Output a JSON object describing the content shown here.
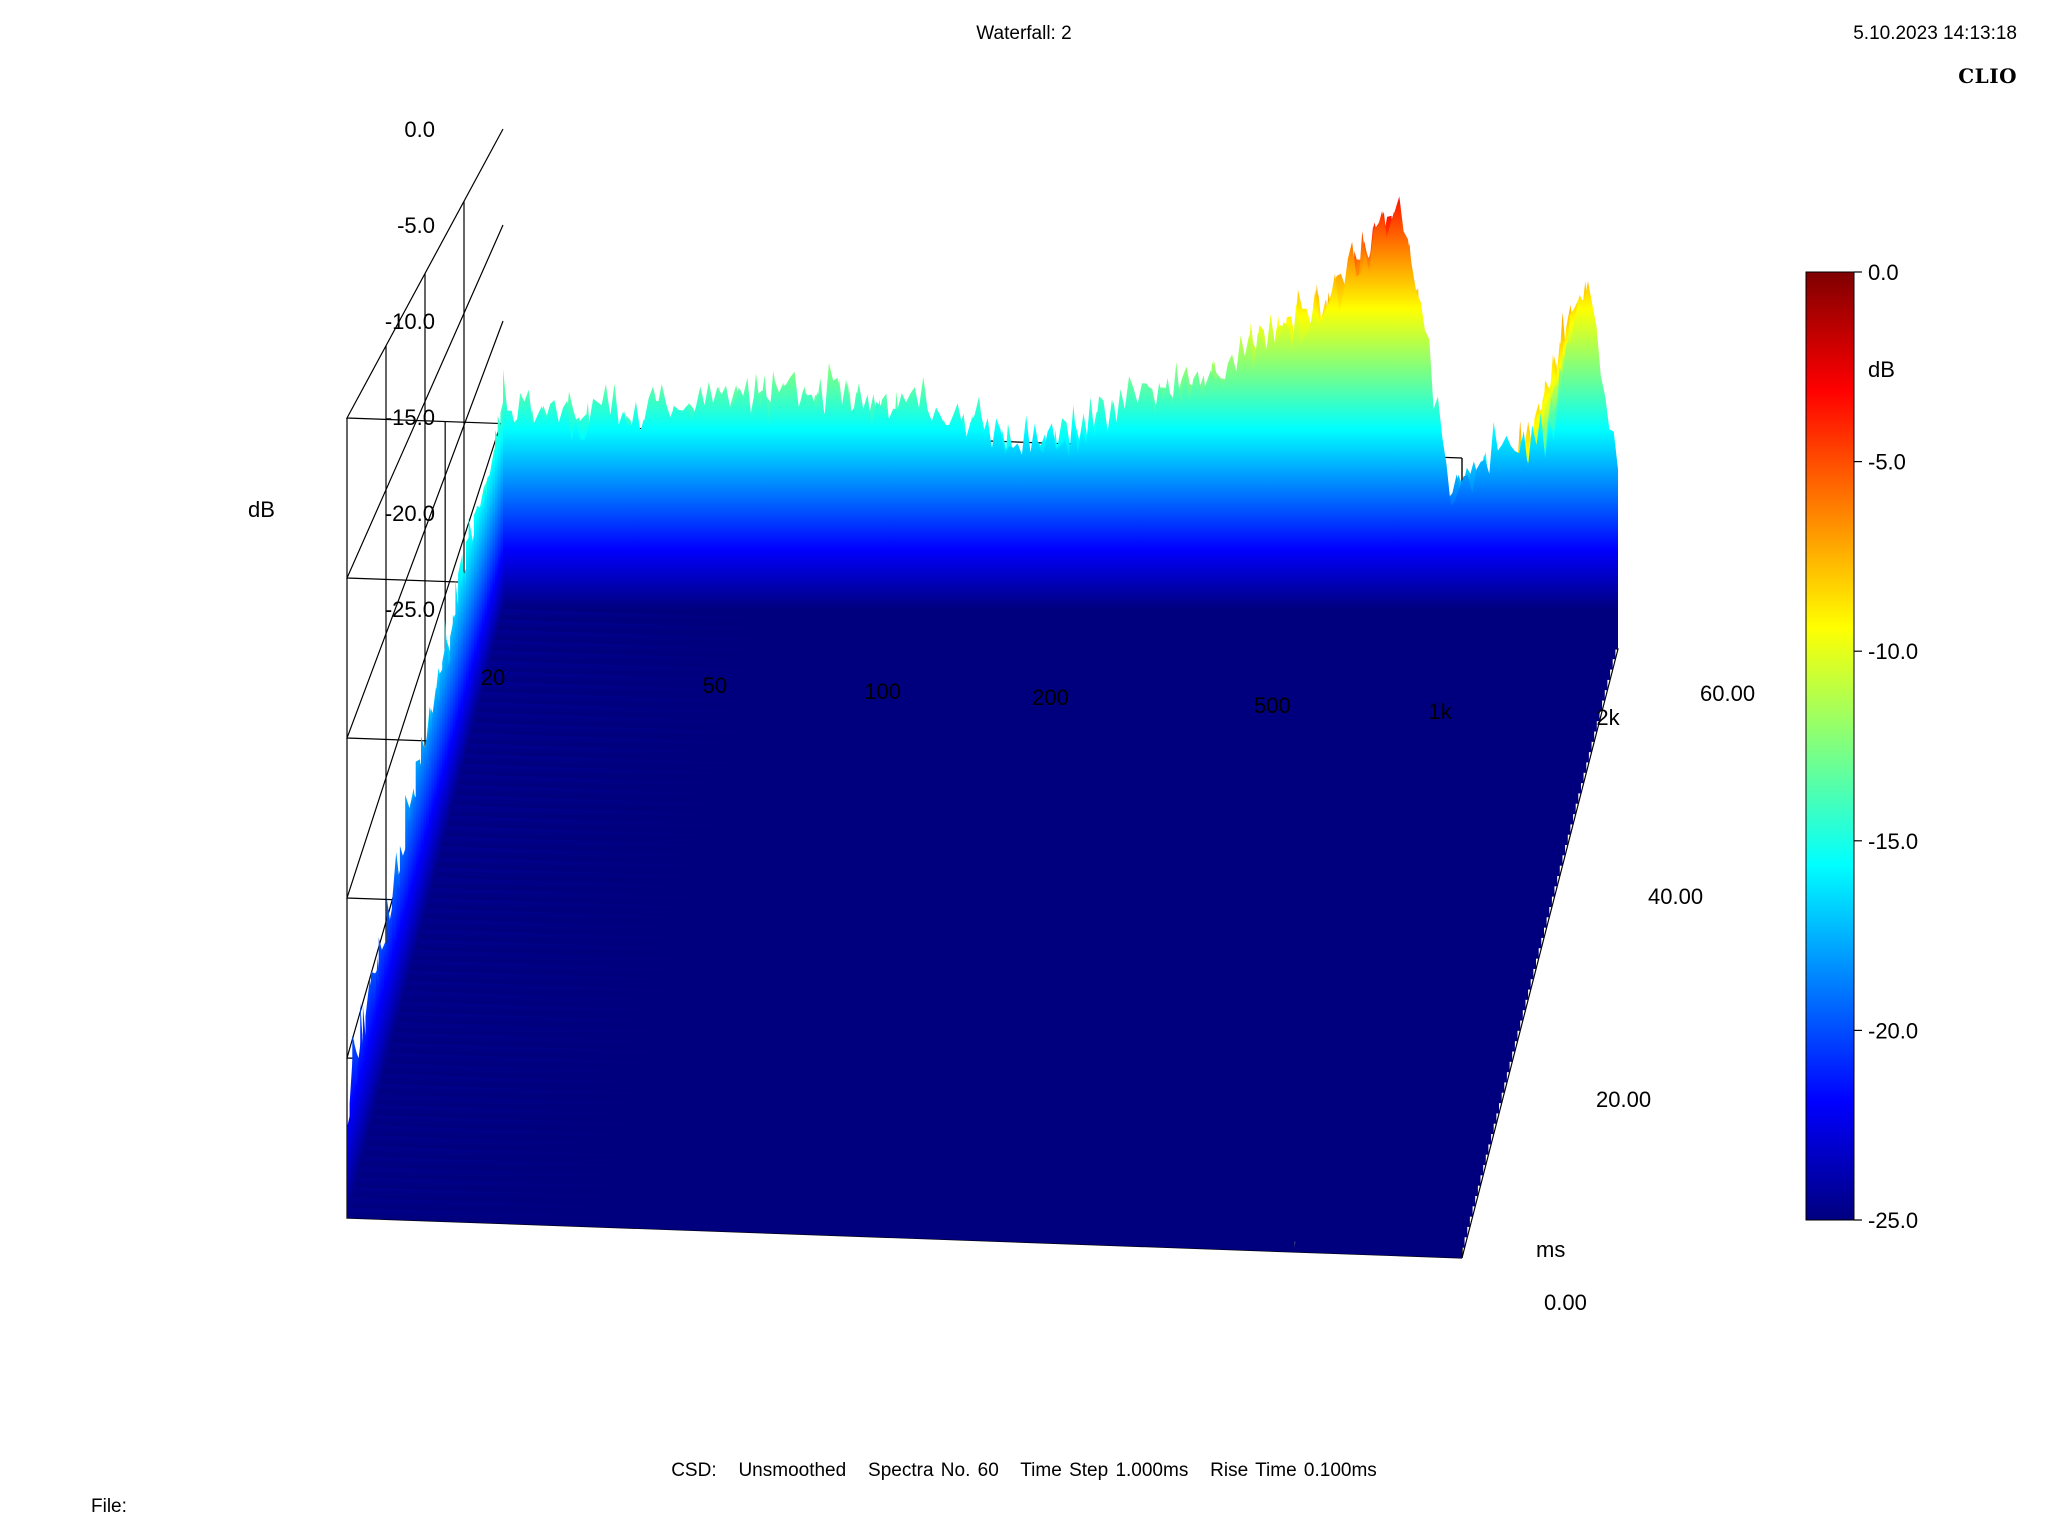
{
  "header": {
    "title": "Waterfall: 2",
    "timestamp": "5.10.2023 14:13:18",
    "brand": "CLIO"
  },
  "footer": {
    "csd_label": "CSD:",
    "smoothing": "Unsmoothed",
    "spectra": "Spectra No. 60",
    "time_step": "Time Step 1.000ms",
    "rise_time": "Rise Time 0.100ms",
    "file_label": "File:"
  },
  "chart_data": {
    "type": "waterfall",
    "title": "Waterfall: 2",
    "z_axis": {
      "unit": "dB",
      "range": [
        -25,
        0
      ],
      "ticks": [
        "0.0",
        "-5.0",
        "-10.0",
        "-15.0",
        "-20.0",
        "-25.0"
      ]
    },
    "x_axis": {
      "scale": "log",
      "range": [
        20,
        2000
      ],
      "ticks": [
        {
          "value": 20,
          "label": "20"
        },
        {
          "value": 50,
          "label": "50"
        },
        {
          "value": 100,
          "label": "100"
        },
        {
          "value": 200,
          "label": "200"
        },
        {
          "value": 500,
          "label": "500"
        },
        {
          "value": 1000,
          "label": "1k"
        },
        {
          "value": 2000,
          "label": "2k"
        }
      ]
    },
    "y_axis": {
      "unit": "ms",
      "range": [
        0,
        60
      ],
      "ticks": [
        "0.00",
        "20.00",
        "40.00",
        "60.00"
      ]
    },
    "colorbar": {
      "unit": "dB",
      "ticks": [
        "0.0",
        "-5.0",
        "-10.0",
        "-15.0",
        "-20.0",
        "-25.0"
      ]
    },
    "spectra_count": 60,
    "first_spectrum_peaks_db": [
      {
        "freq": 20,
        "level": -12.5
      },
      {
        "freq": 28,
        "level": -12.8
      },
      {
        "freq": 40,
        "level": -12.2
      },
      {
        "freq": 55,
        "level": -11.5
      },
      {
        "freq": 80,
        "level": -11.0
      },
      {
        "freq": 120,
        "level": -12.0
      },
      {
        "freq": 180,
        "level": -13.5
      },
      {
        "freq": 250,
        "level": -11.5
      },
      {
        "freq": 330,
        "level": -10.0
      },
      {
        "freq": 400,
        "level": -9.5
      },
      {
        "freq": 460,
        "level": -7.5
      },
      {
        "freq": 530,
        "level": -6.5
      },
      {
        "freq": 620,
        "level": -5.0
      },
      {
        "freq": 760,
        "level": -1.5
      },
      {
        "freq": 800,
        "level": -0.3
      },
      {
        "freq": 850,
        "level": -2.5
      },
      {
        "freq": 1000,
        "level": -15.0
      },
      {
        "freq": 1200,
        "level": -13.0
      },
      {
        "freq": 1500,
        "level": -12.5
      },
      {
        "freq": 1750,
        "level": -3.8
      },
      {
        "freq": 2000,
        "level": -13.5
      }
    ]
  }
}
